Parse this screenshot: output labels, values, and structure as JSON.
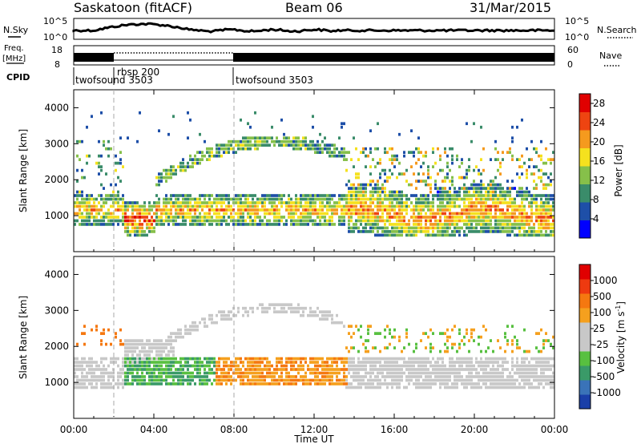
{
  "header": {
    "station": "Saskatoon (fitACF)",
    "beam": "Beam 06",
    "date": "31/Mar/2015"
  },
  "top_panels": {
    "nsky_label": "N.Sky",
    "nsky_ticks": [
      "10^5",
      "10^0"
    ],
    "nsearch_label": "N.Search",
    "freq_label_line1": "Freq.",
    "freq_label_line2": "[MHz]",
    "freq_ticks": [
      "18",
      "8"
    ],
    "nave_ticks": [
      "60",
      "0"
    ],
    "nave_label": "Nave",
    "cpid_label": "CPID",
    "cpid_segments": [
      {
        "label": "twofsound 3503",
        "start_hour": 0.0
      },
      {
        "label": "rbsp 200",
        "start_hour": 2.0
      },
      {
        "label": "twofsound 3503",
        "start_hour": 8.0
      }
    ]
  },
  "x_axis": {
    "label": "Time UT",
    "ticks": [
      "00:00",
      "04:00",
      "08:00",
      "12:00",
      "16:00",
      "20:00",
      "00:00"
    ],
    "tick_hours": [
      0,
      4,
      8,
      12,
      16,
      20,
      24
    ]
  },
  "chart_data": [
    {
      "type": "heatmap",
      "title": "Power",
      "ylabel": "Slant Range [km]",
      "xlabel": "Time UT",
      "xlim": [
        0,
        24
      ],
      "ylim": [
        0,
        4500
      ],
      "yticks": [
        "1000",
        "2000",
        "3000",
        "4000"
      ],
      "ytick_values": [
        1000,
        2000,
        3000,
        4000
      ],
      "colorbar_label": "Power [dB]",
      "colorbar_ticks": [
        "4",
        "8",
        "12",
        "16",
        "20",
        "24",
        "28"
      ],
      "colorbar_range": [
        0,
        30
      ],
      "colorbar_colors": [
        "#0000ff",
        "#1e4fa8",
        "#3a8c6a",
        "#86c04a",
        "#f5e11e",
        "#f59a1e",
        "#ee4411",
        "#e00000"
      ]
    },
    {
      "type": "heatmap",
      "title": "Velocity",
      "ylabel": "Slant Range [km]",
      "xlabel": "Time UT",
      "xlim": [
        0,
        24
      ],
      "ylim": [
        0,
        4500
      ],
      "yticks": [
        "1000",
        "2000",
        "3000",
        "4000"
      ],
      "ytick_values": [
        1000,
        2000,
        3000,
        4000
      ],
      "colorbar_label": "Velocity [m s-1]",
      "colorbar_ticks": [
        "1000",
        "500",
        "100",
        "25",
        "-25",
        "-100",
        "-500",
        "-1000"
      ],
      "colorbar_colors": [
        "#1a3fa8",
        "#3a73b8",
        "#3a9a68",
        "#58c040",
        "#c8c8c8",
        "#c8c8c8",
        "#f5a01e",
        "#f57810",
        "#ee3a10",
        "#e00000"
      ]
    }
  ]
}
